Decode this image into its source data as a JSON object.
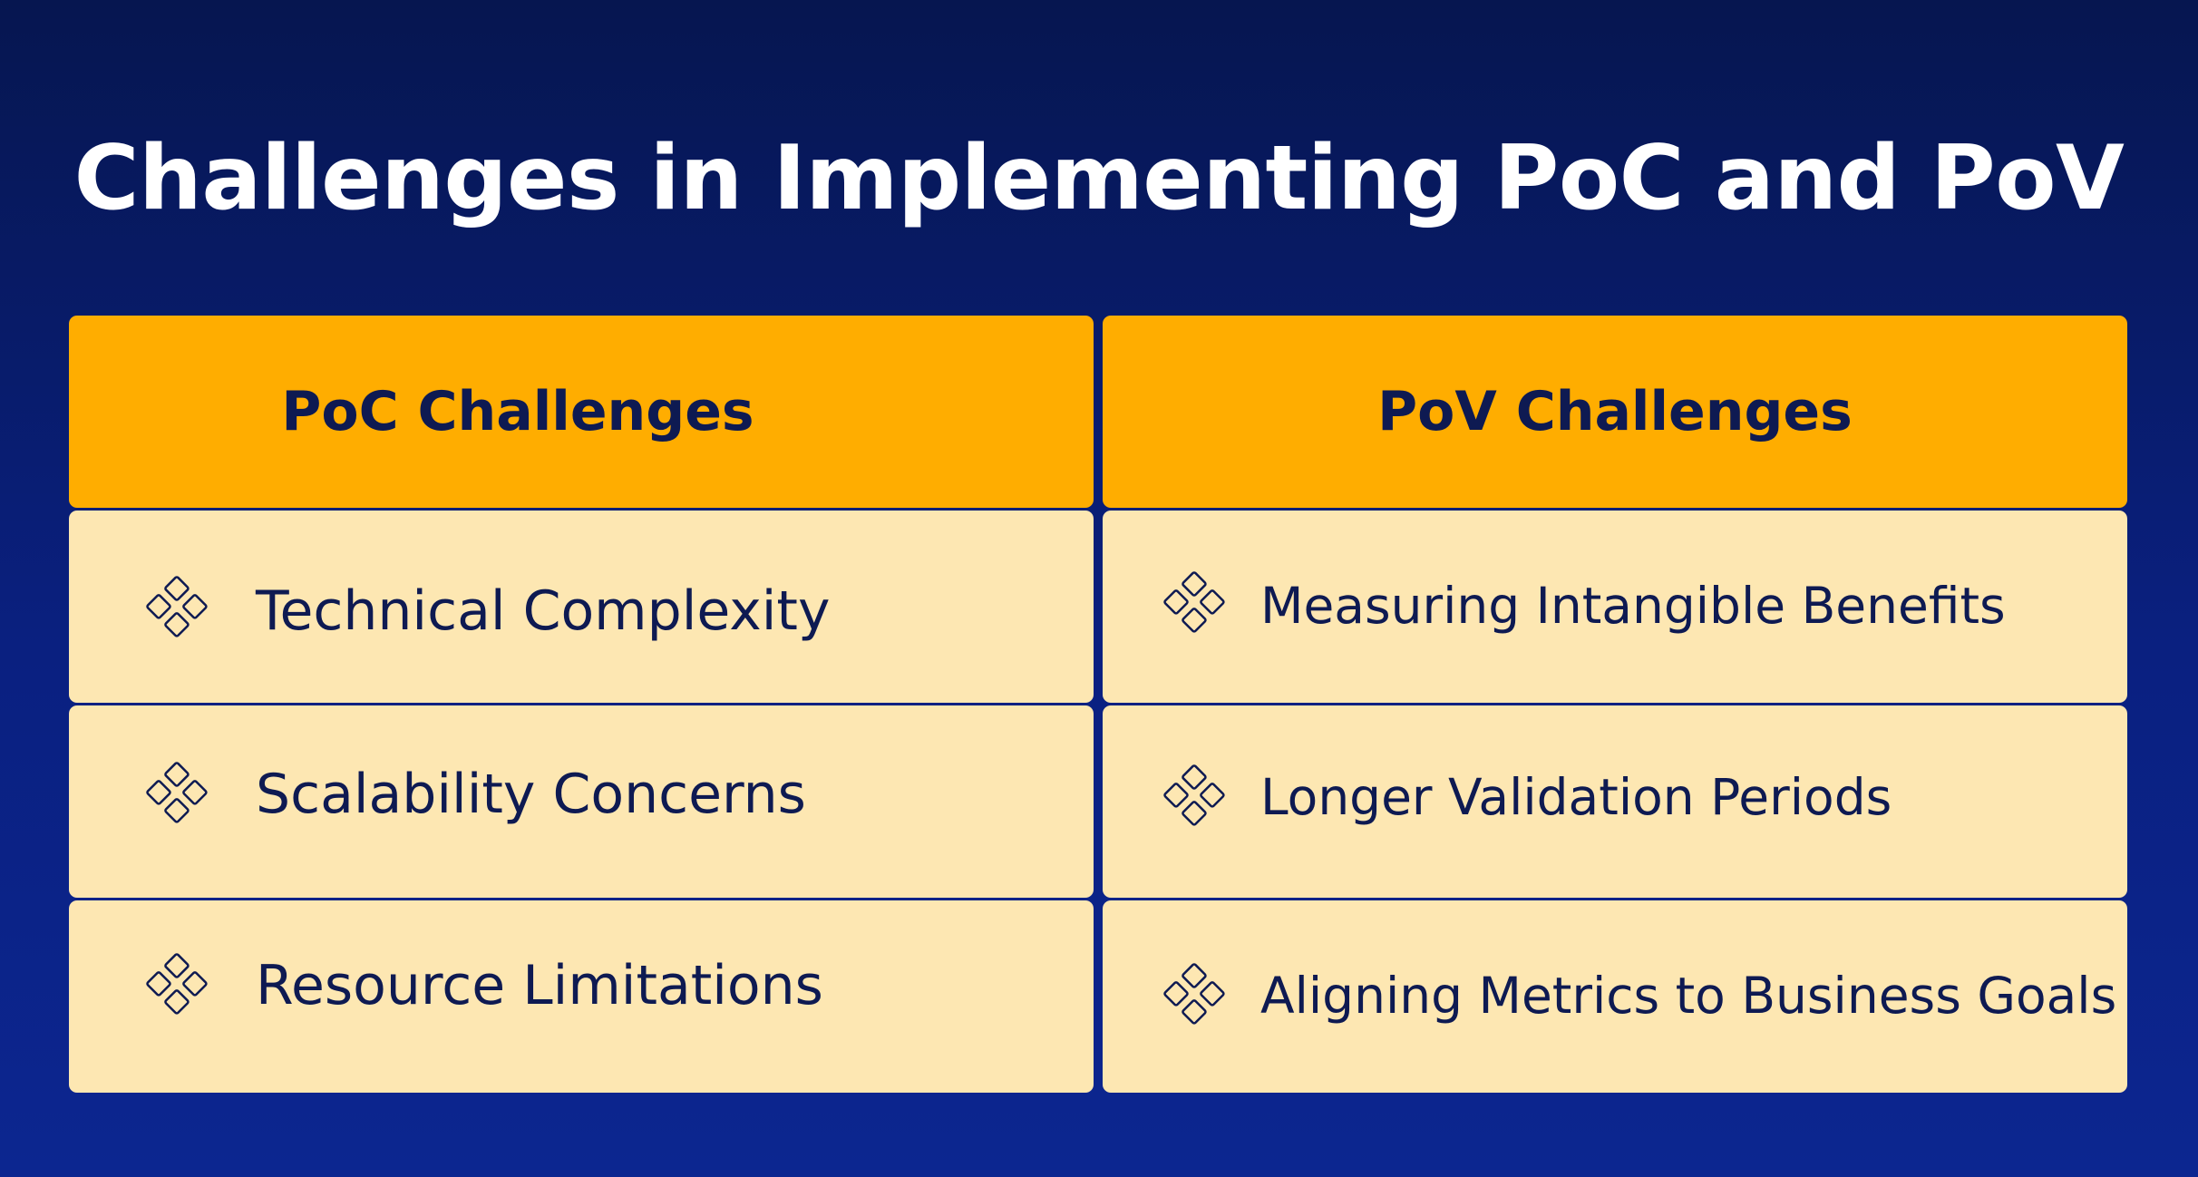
{
  "title": "Challenges in Implementing PoC and PoV",
  "columns": [
    {
      "header": "PoC Challenges",
      "items": [
        {
          "label": "Technical Complexity",
          "icon": "diamond-cluster-icon"
        },
        {
          "label": "Scalability Concerns",
          "icon": "diamond-cluster-icon"
        },
        {
          "label": "Resource Limitations",
          "icon": "diamond-cluster-icon"
        }
      ]
    },
    {
      "header": "PoV Challenges",
      "items": [
        {
          "label": "Measuring Intangible Benefits",
          "icon": "diamond-cluster-icon"
        },
        {
          "label": "Longer Validation Periods",
          "icon": "diamond-cluster-icon"
        },
        {
          "label": "Aligning Metrics to Business Goals",
          "icon": "diamond-cluster-icon"
        }
      ]
    }
  ],
  "colors": {
    "background": "#0a1f7a",
    "header_fill": "#ffad00",
    "item_fill": "#fde7b2",
    "text_dark": "#0e1a52",
    "title_text": "#ffffff"
  }
}
